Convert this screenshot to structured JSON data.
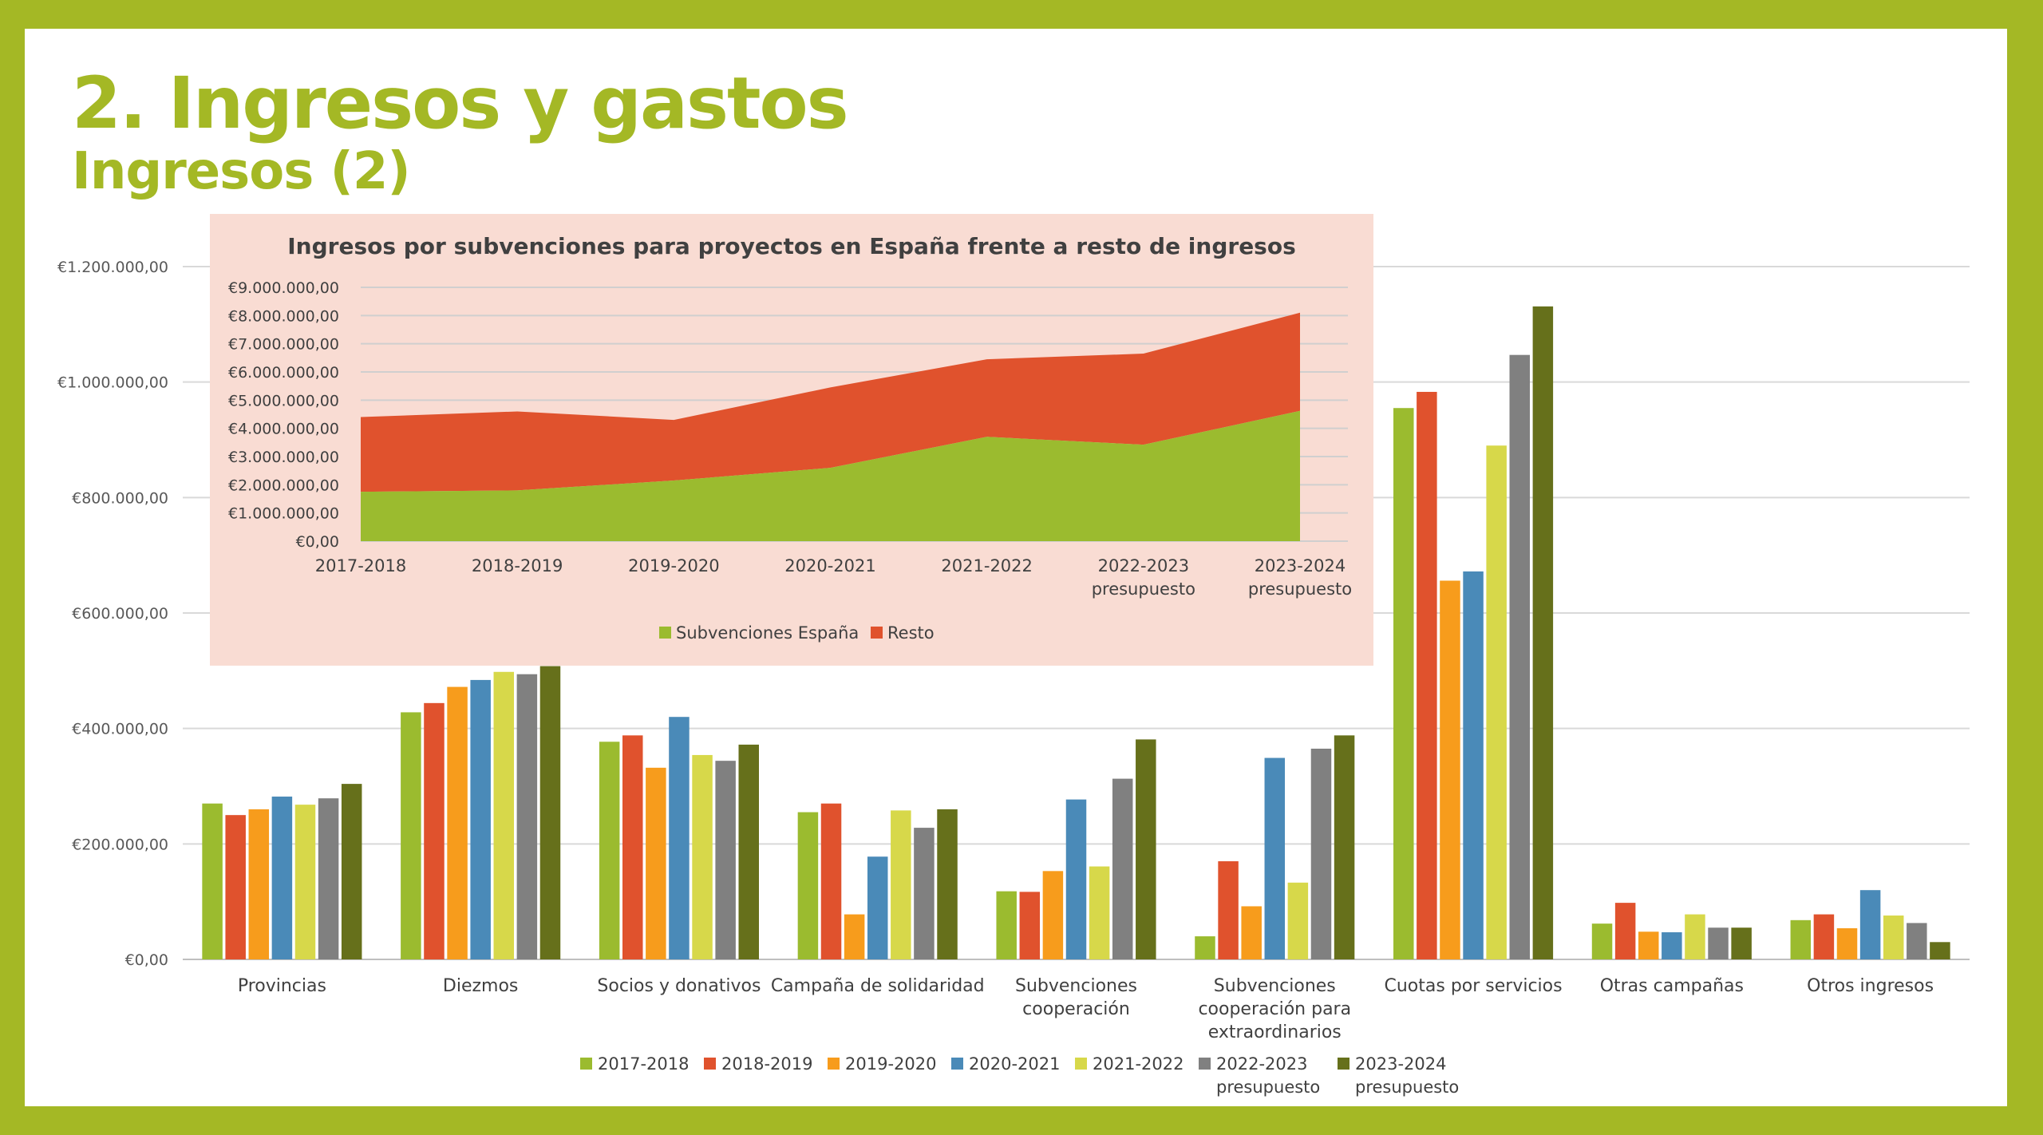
{
  "slide": {
    "title": "2. Ingresos y gastos",
    "subtitle": "Ingresos (2)"
  },
  "colors": {
    "frame": "#a4b825",
    "title": "#a4b825",
    "inset_background": "#f9dcd3"
  },
  "chart_data": [
    {
      "id": "ingresos-por-categoria",
      "type": "bar",
      "title": "",
      "xlabel": "",
      "ylabel": "",
      "ylim": [
        0,
        1200000
      ],
      "yticks": [
        {
          "value": 0,
          "label": "€0,00"
        },
        {
          "value": 200000,
          "label": "€200.000,00"
        },
        {
          "value": 400000,
          "label": "€400.000,00"
        },
        {
          "value": 600000,
          "label": "€600.000,00"
        },
        {
          "value": 800000,
          "label": "€800.000,00"
        },
        {
          "value": 1000000,
          "label": "€1.000.000,00"
        },
        {
          "value": 1200000,
          "label": "€1.200.000,00"
        }
      ],
      "grid": true,
      "legend_position": "bottom",
      "categories": [
        [
          "Provincias"
        ],
        [
          "Diezmos"
        ],
        [
          "Socios y donativos"
        ],
        [
          "Campaña de solidaridad"
        ],
        [
          "Subvenciones",
          "cooperación"
        ],
        [
          "Subvenciones",
          "cooperación para",
          "extraordinarios"
        ],
        [
          "Cuotas por servicios"
        ],
        [
          "Otras campañas"
        ],
        [
          "Otros ingresos"
        ]
      ],
      "series": [
        {
          "name": [
            "2017-2018"
          ],
          "color": "#9bbb2f",
          "values": [
            270000,
            428000,
            377000,
            255000,
            118000,
            40000,
            955000,
            62000,
            68000
          ]
        },
        {
          "name": [
            "2018-2019"
          ],
          "color": "#e0522d",
          "values": [
            250000,
            444000,
            388000,
            270000,
            117000,
            170000,
            983000,
            98000,
            78000
          ]
        },
        {
          "name": [
            "2019-2020"
          ],
          "color": "#f79c1c",
          "values": [
            260000,
            472000,
            332000,
            78000,
            153000,
            92000,
            656000,
            48000,
            54000
          ]
        },
        {
          "name": [
            "2020-2021"
          ],
          "color": "#4a8ab8",
          "values": [
            282000,
            484000,
            420000,
            178000,
            277000,
            349000,
            672000,
            47000,
            120000
          ]
        },
        {
          "name": [
            "2021-2022"
          ],
          "color": "#d7d84a",
          "values": [
            268000,
            498000,
            354000,
            258000,
            161000,
            133000,
            890000,
            78000,
            76000
          ]
        },
        {
          "name": [
            "2022-2023",
            "presupuesto"
          ],
          "color": "#808080",
          "values": [
            279000,
            494000,
            344000,
            228000,
            313000,
            365000,
            1047000,
            55000,
            63000
          ]
        },
        {
          "name": [
            "2023-2024",
            "presupuesto"
          ],
          "color": "#66701b",
          "values": [
            304000,
            508000,
            372000,
            260000,
            381000,
            388000,
            1131000,
            55000,
            30000
          ]
        }
      ]
    },
    {
      "id": "subvenciones-vs-resto",
      "type": "area",
      "stacked": true,
      "title": "Ingresos por subvenciones para proyectos en España frente a resto de ingresos",
      "xlabel": "",
      "ylabel": "",
      "ylim": [
        0,
        9000000
      ],
      "yticks": [
        {
          "value": 0,
          "label": "€0,00"
        },
        {
          "value": 1000000,
          "label": "€1.000.000,00"
        },
        {
          "value": 2000000,
          "label": "€2.000.000,00"
        },
        {
          "value": 3000000,
          "label": "€3.000.000,00"
        },
        {
          "value": 4000000,
          "label": "€4.000.000,00"
        },
        {
          "value": 5000000,
          "label": "€5.000.000,00"
        },
        {
          "value": 6000000,
          "label": "€6.000.000,00"
        },
        {
          "value": 7000000,
          "label": "€7.000.000,00"
        },
        {
          "value": 8000000,
          "label": "€8.000.000,00"
        },
        {
          "value": 9000000,
          "label": "€9.000.000,00"
        }
      ],
      "grid": true,
      "legend_position": "bottom",
      "categories": [
        [
          "2017-2018"
        ],
        [
          "2018-2019"
        ],
        [
          "2019-2020"
        ],
        [
          "2020-2021"
        ],
        [
          "2021-2022"
        ],
        [
          "2022-2023",
          "presupuesto"
        ],
        [
          "2023-2024",
          "presupuesto"
        ]
      ],
      "series": [
        {
          "name": "Subvenciones España",
          "color": "#9bbb2f",
          "values": [
            1750000,
            1800000,
            2150000,
            2600000,
            3700000,
            3420000,
            4620000
          ]
        },
        {
          "name": "Resto",
          "color": "#e0522d",
          "values": [
            2650000,
            2800000,
            2150000,
            2850000,
            2750000,
            3230000,
            3480000
          ]
        }
      ]
    }
  ]
}
